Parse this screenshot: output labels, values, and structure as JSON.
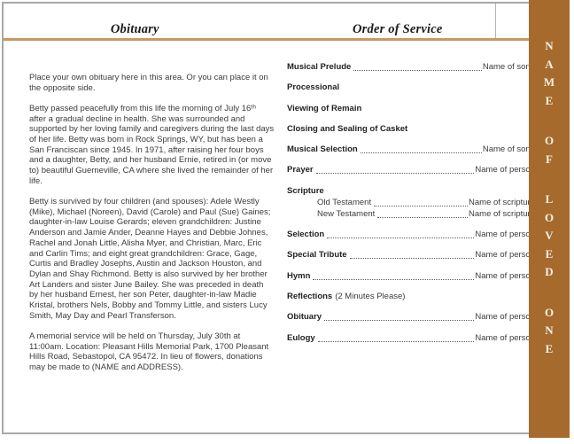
{
  "obituary": {
    "title": "Obituary",
    "paragraphs": [
      "Place your own obituary here in this area. Or you can place it on the opposite side.",
      "Betty passed peacefully from this life the morning of July 16ᵗʰ after a gradual decline in health.  She was surrounded and supported by her loving family and caregivers during the last days of her life.  Betty was born in Rock Springs, WY, but has been a San Franciscan since 1945.  In 1971, after raising her four boys and a daughter, Betty, and her husband Ernie, retired in (or move to) beautiful Guerneville, CA where she lived the remainder of her life.",
      "Betty is survived by four children (and spouses): Adele Westly (Mike), Michael (Noreen), David (Carole) and Paul (Sue) Gaines;  daughter-in-law Louise Gerards;  eleven grandchildren: Justine Anderson and Jamie Ander, Deanne Hayes and Debbie Johnes, Rachel and Jonah Little, Alisha Myer, and Christian, Marc, Eric and Carlin Tims;  and eight great grandchildren: Grace, Gage, Curtis and Bradley Josephs, Austin and Jackson Houston, and Dylan and Shay Richmond.  Betty is also survived by her brother Art Landers and sister June Bailey.  She was preceded in death by her husband Ernest, her son Peter, daughter-in-law Madie Kristal, brothers Nels, Bobby and Tommy Little, and sisters Lucy Smith, May Day and Pearl Transferson.",
      "A memorial service will be held on Thursday, July 30th at 11:00am.  Location:  Pleasant Hills Memorial Park, 1700 Pleasant Hills Road, Sebastopol, CA 95472.  In lieu of flowers, donations may be made to (NAME and ADDRESS)."
    ]
  },
  "order_of_service": {
    "title": "Order of Service",
    "items": [
      {
        "label": "Musical Prelude",
        "value": "Name of song"
      },
      {
        "label": "Processional",
        "value": ""
      },
      {
        "label": "Viewing of Remain",
        "value": ""
      },
      {
        "label": "Closing and Sealing of Casket",
        "value": ""
      },
      {
        "label": "Musical Selection",
        "value": "Name of song"
      },
      {
        "label": "Prayer",
        "value": "Name of person"
      },
      {
        "label": "Scripture",
        "value": "",
        "sub": [
          {
            "label": "Old Testament",
            "value": "Name of scripture"
          },
          {
            "label": "New Testament",
            "value": "Name of scripture"
          }
        ]
      },
      {
        "label": "Selection",
        "value": "Name of person"
      },
      {
        "label": "Special Tribute",
        "value": "Name of person"
      },
      {
        "label": "Hymn",
        "value": "Name of person"
      },
      {
        "label": "Reflections",
        "note": "(2 Minutes Please)",
        "value": ""
      },
      {
        "label": "Obituary",
        "value": "Name of person"
      },
      {
        "label": "Eulogy",
        "value": "Name of person"
      }
    ]
  },
  "sidebar": {
    "words": [
      "NAME",
      "OF",
      "LOVED",
      "ONE"
    ]
  },
  "colors": {
    "sidebar_brown": "#A66A2C",
    "rule_tan": "#C99760",
    "border_gray": "#A8A8A8",
    "body_text": "#3C3C3C",
    "letter_cream": "#F6F1E6"
  }
}
